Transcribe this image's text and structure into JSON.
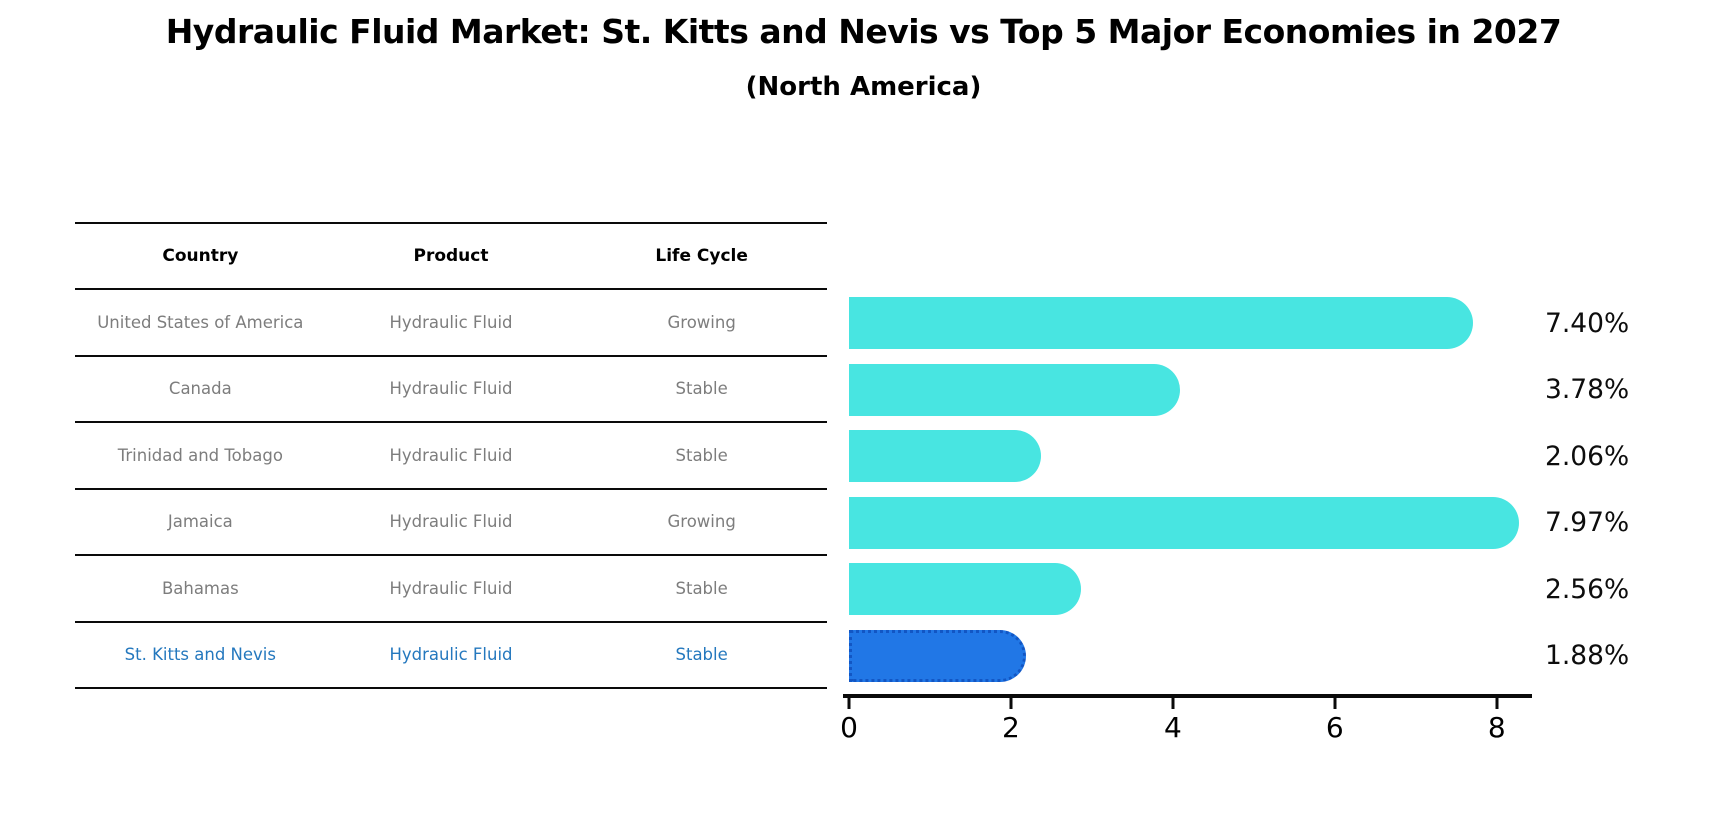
{
  "title": "Hydraulic Fluid Market: St. Kitts and Nevis vs Top 5 Major Economies in 2027",
  "subtitle": "(North America)",
  "table": {
    "headers": [
      "Country",
      "Product",
      "Life Cycle"
    ],
    "rows": [
      {
        "country": "United States of America",
        "product": "Hydraulic Fluid",
        "life_cycle": "Growing",
        "highlight": false
      },
      {
        "country": "Canada",
        "product": "Hydraulic Fluid",
        "life_cycle": "Stable",
        "highlight": false
      },
      {
        "country": "Trinidad and Tobago",
        "product": "Hydraulic Fluid",
        "life_cycle": "Stable",
        "highlight": false
      },
      {
        "country": "Jamaica",
        "product": "Hydraulic Fluid",
        "life_cycle": "Growing",
        "highlight": false
      },
      {
        "country": "Bahamas",
        "product": "Hydraulic Fluid",
        "life_cycle": "Stable",
        "highlight": false
      },
      {
        "country": "St. Kitts and Nevis",
        "product": "Hydraulic Fluid",
        "life_cycle": "Stable",
        "highlight": true
      }
    ]
  },
  "chart_data": {
    "type": "bar",
    "orientation": "horizontal",
    "title": "Hydraulic Fluid Market: St. Kitts and Nevis vs Top 5 Major Economies in 2027",
    "subtitle": "(North America)",
    "categories": [
      "United States of America",
      "Canada",
      "Trinidad and Tobago",
      "Jamaica",
      "Bahamas",
      "St. Kitts and Nevis"
    ],
    "values": [
      7.4,
      3.78,
      2.06,
      7.97,
      2.56,
      1.88
    ],
    "value_labels": [
      "7.40%",
      "3.78%",
      "2.06%",
      "7.97%",
      "2.56%",
      "1.88%"
    ],
    "xlabel": "",
    "ylabel": "",
    "xticks": [
      0,
      2,
      4,
      6,
      8
    ],
    "xlim": [
      0,
      8.41
    ],
    "grid": false,
    "legend": false,
    "bar_color": "#48e5e1",
    "highlight_color": "#2177e6",
    "highlight_border_color": "#1256c4",
    "highlight_index": 5,
    "highlight_text_color": "#2478be"
  }
}
